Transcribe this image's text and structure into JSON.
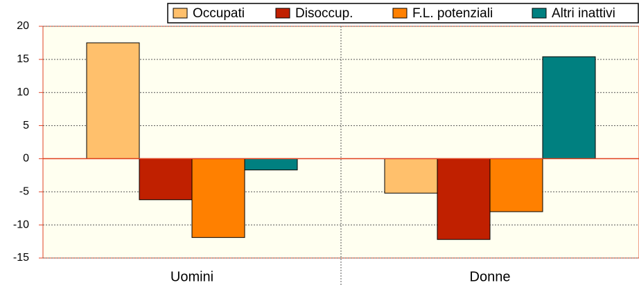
{
  "chart_data": {
    "type": "bar",
    "categories": [
      "Uomini",
      "Donne"
    ],
    "series": [
      {
        "name": "Occupati",
        "color": "#ffc06c",
        "values": [
          17.5,
          -5.2
        ]
      },
      {
        "name": "Disoccup.",
        "color": "#c02000",
        "values": [
          -6.2,
          -12.2
        ]
      },
      {
        "name": "F.L. potenziali",
        "color": "#ff8000",
        "values": [
          -11.9,
          -8.0
        ]
      },
      {
        "name": "Altri inattivi",
        "color": "#008080",
        "values": [
          -1.7,
          15.4
        ]
      }
    ],
    "ylim": [
      -15,
      20
    ],
    "yticks": [
      -15,
      -10,
      -5,
      0,
      5,
      10,
      15,
      20
    ],
    "grid": true,
    "legend": "top-right"
  }
}
